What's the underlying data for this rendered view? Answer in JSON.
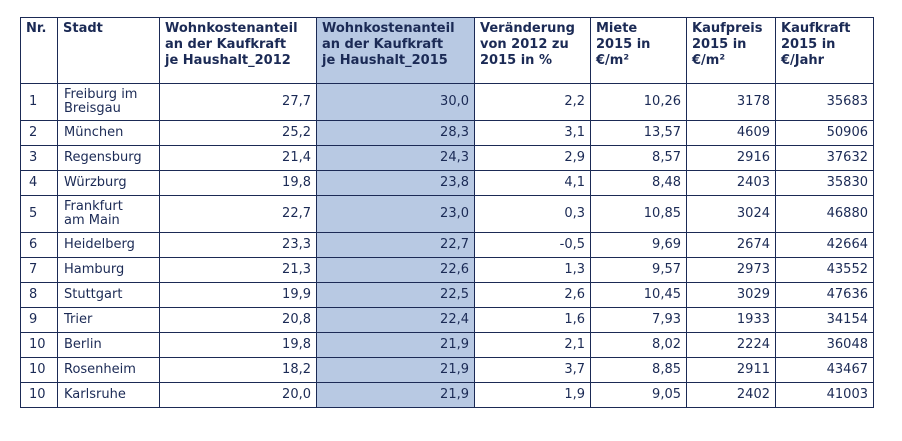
{
  "headers": [
    "Nr.",
    "Stadt",
    "Wohnkostenanteil\nan der Kaufkraft\nje Haushalt_2012",
    "Wohnkostenanteil\nan der Kaufkraft\nje Haushalt_2015",
    "Veränderung\nvon 2012 zu\n2015 in %",
    "Miete\n2015 in\n€/m²",
    "Kaufpreis\n2015 in\n€/m²",
    "Kaufkraft\n2015 in\n€/Jahr"
  ],
  "highlight_color": "#b8c9e3",
  "text_color": "#1b2a55",
  "rows": [
    [
      "1",
      "Freiburg im\nBreisgau",
      "27,7",
      "30,0",
      "2,2",
      "10,26",
      "3178",
      "35683"
    ],
    [
      "2",
      "München",
      "25,2",
      "28,3",
      "3,1",
      "13,57",
      "4609",
      "50906"
    ],
    [
      "3",
      "Regensburg",
      "21,4",
      "24,3",
      "2,9",
      "8,57",
      "2916",
      "37632"
    ],
    [
      "4",
      "Würzburg",
      "19,8",
      "23,8",
      "4,1",
      "8,48",
      "2403",
      "35830"
    ],
    [
      "5",
      "Frankfurt\nam Main",
      "22,7",
      "23,0",
      "0,3",
      "10,85",
      "3024",
      "46880"
    ],
    [
      "6",
      "Heidelberg",
      "23,3",
      "22,7",
      "-0,5",
      "9,69",
      "2674",
      "42664"
    ],
    [
      "7",
      "Hamburg",
      "21,3",
      "22,6",
      "1,3",
      "9,57",
      "2973",
      "43552"
    ],
    [
      "8",
      "Stuttgart",
      "19,9",
      "22,5",
      "2,6",
      "10,45",
      "3029",
      "47636"
    ],
    [
      "9",
      "Trier",
      "20,8",
      "22,4",
      "1,6",
      "7,93",
      "1933",
      "34154"
    ],
    [
      "10",
      "Berlin",
      "19,8",
      "21,9",
      "2,1",
      "8,02",
      "2224",
      "36048"
    ],
    [
      "10",
      "Rosenheim",
      "18,2",
      "21,9",
      "3,7",
      "8,85",
      "2911",
      "43467"
    ],
    [
      "10",
      "Karlsruhe",
      "20,0",
      "21,9",
      "1,9",
      "9,05",
      "2402",
      "41003"
    ]
  ]
}
